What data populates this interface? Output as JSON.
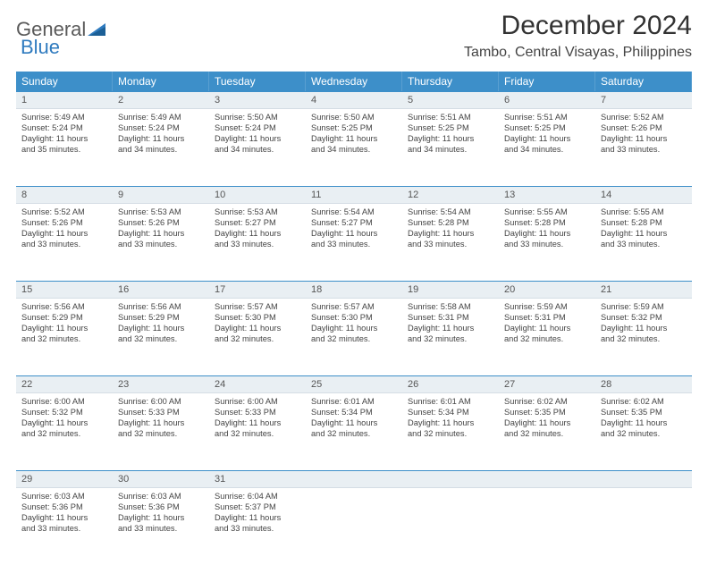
{
  "logo": {
    "word1": "General",
    "word2": "Blue"
  },
  "title": "December 2024",
  "location": "Tambo, Central Visayas, Philippines",
  "header_bg": "#3d8fc9",
  "daynum_bg": "#e9eff3",
  "day_names": [
    "Sunday",
    "Monday",
    "Tuesday",
    "Wednesday",
    "Thursday",
    "Friday",
    "Saturday"
  ],
  "weeks": [
    {
      "nums": [
        "1",
        "2",
        "3",
        "4",
        "5",
        "6",
        "7"
      ],
      "cells": [
        {
          "sunrise": "Sunrise: 5:49 AM",
          "sunset": "Sunset: 5:24 PM",
          "d1": "Daylight: 11 hours",
          "d2": "and 35 minutes."
        },
        {
          "sunrise": "Sunrise: 5:49 AM",
          "sunset": "Sunset: 5:24 PM",
          "d1": "Daylight: 11 hours",
          "d2": "and 34 minutes."
        },
        {
          "sunrise": "Sunrise: 5:50 AM",
          "sunset": "Sunset: 5:24 PM",
          "d1": "Daylight: 11 hours",
          "d2": "and 34 minutes."
        },
        {
          "sunrise": "Sunrise: 5:50 AM",
          "sunset": "Sunset: 5:25 PM",
          "d1": "Daylight: 11 hours",
          "d2": "and 34 minutes."
        },
        {
          "sunrise": "Sunrise: 5:51 AM",
          "sunset": "Sunset: 5:25 PM",
          "d1": "Daylight: 11 hours",
          "d2": "and 34 minutes."
        },
        {
          "sunrise": "Sunrise: 5:51 AM",
          "sunset": "Sunset: 5:25 PM",
          "d1": "Daylight: 11 hours",
          "d2": "and 34 minutes."
        },
        {
          "sunrise": "Sunrise: 5:52 AM",
          "sunset": "Sunset: 5:26 PM",
          "d1": "Daylight: 11 hours",
          "d2": "and 33 minutes."
        }
      ]
    },
    {
      "nums": [
        "8",
        "9",
        "10",
        "11",
        "12",
        "13",
        "14"
      ],
      "cells": [
        {
          "sunrise": "Sunrise: 5:52 AM",
          "sunset": "Sunset: 5:26 PM",
          "d1": "Daylight: 11 hours",
          "d2": "and 33 minutes."
        },
        {
          "sunrise": "Sunrise: 5:53 AM",
          "sunset": "Sunset: 5:26 PM",
          "d1": "Daylight: 11 hours",
          "d2": "and 33 minutes."
        },
        {
          "sunrise": "Sunrise: 5:53 AM",
          "sunset": "Sunset: 5:27 PM",
          "d1": "Daylight: 11 hours",
          "d2": "and 33 minutes."
        },
        {
          "sunrise": "Sunrise: 5:54 AM",
          "sunset": "Sunset: 5:27 PM",
          "d1": "Daylight: 11 hours",
          "d2": "and 33 minutes."
        },
        {
          "sunrise": "Sunrise: 5:54 AM",
          "sunset": "Sunset: 5:28 PM",
          "d1": "Daylight: 11 hours",
          "d2": "and 33 minutes."
        },
        {
          "sunrise": "Sunrise: 5:55 AM",
          "sunset": "Sunset: 5:28 PM",
          "d1": "Daylight: 11 hours",
          "d2": "and 33 minutes."
        },
        {
          "sunrise": "Sunrise: 5:55 AM",
          "sunset": "Sunset: 5:28 PM",
          "d1": "Daylight: 11 hours",
          "d2": "and 33 minutes."
        }
      ]
    },
    {
      "nums": [
        "15",
        "16",
        "17",
        "18",
        "19",
        "20",
        "21"
      ],
      "cells": [
        {
          "sunrise": "Sunrise: 5:56 AM",
          "sunset": "Sunset: 5:29 PM",
          "d1": "Daylight: 11 hours",
          "d2": "and 32 minutes."
        },
        {
          "sunrise": "Sunrise: 5:56 AM",
          "sunset": "Sunset: 5:29 PM",
          "d1": "Daylight: 11 hours",
          "d2": "and 32 minutes."
        },
        {
          "sunrise": "Sunrise: 5:57 AM",
          "sunset": "Sunset: 5:30 PM",
          "d1": "Daylight: 11 hours",
          "d2": "and 32 minutes."
        },
        {
          "sunrise": "Sunrise: 5:57 AM",
          "sunset": "Sunset: 5:30 PM",
          "d1": "Daylight: 11 hours",
          "d2": "and 32 minutes."
        },
        {
          "sunrise": "Sunrise: 5:58 AM",
          "sunset": "Sunset: 5:31 PM",
          "d1": "Daylight: 11 hours",
          "d2": "and 32 minutes."
        },
        {
          "sunrise": "Sunrise: 5:59 AM",
          "sunset": "Sunset: 5:31 PM",
          "d1": "Daylight: 11 hours",
          "d2": "and 32 minutes."
        },
        {
          "sunrise": "Sunrise: 5:59 AM",
          "sunset": "Sunset: 5:32 PM",
          "d1": "Daylight: 11 hours",
          "d2": "and 32 minutes."
        }
      ]
    },
    {
      "nums": [
        "22",
        "23",
        "24",
        "25",
        "26",
        "27",
        "28"
      ],
      "cells": [
        {
          "sunrise": "Sunrise: 6:00 AM",
          "sunset": "Sunset: 5:32 PM",
          "d1": "Daylight: 11 hours",
          "d2": "and 32 minutes."
        },
        {
          "sunrise": "Sunrise: 6:00 AM",
          "sunset": "Sunset: 5:33 PM",
          "d1": "Daylight: 11 hours",
          "d2": "and 32 minutes."
        },
        {
          "sunrise": "Sunrise: 6:00 AM",
          "sunset": "Sunset: 5:33 PM",
          "d1": "Daylight: 11 hours",
          "d2": "and 32 minutes."
        },
        {
          "sunrise": "Sunrise: 6:01 AM",
          "sunset": "Sunset: 5:34 PM",
          "d1": "Daylight: 11 hours",
          "d2": "and 32 minutes."
        },
        {
          "sunrise": "Sunrise: 6:01 AM",
          "sunset": "Sunset: 5:34 PM",
          "d1": "Daylight: 11 hours",
          "d2": "and 32 minutes."
        },
        {
          "sunrise": "Sunrise: 6:02 AM",
          "sunset": "Sunset: 5:35 PM",
          "d1": "Daylight: 11 hours",
          "d2": "and 32 minutes."
        },
        {
          "sunrise": "Sunrise: 6:02 AM",
          "sunset": "Sunset: 5:35 PM",
          "d1": "Daylight: 11 hours",
          "d2": "and 32 minutes."
        }
      ]
    },
    {
      "nums": [
        "29",
        "30",
        "31",
        "",
        "",
        "",
        ""
      ],
      "cells": [
        {
          "sunrise": "Sunrise: 6:03 AM",
          "sunset": "Sunset: 5:36 PM",
          "d1": "Daylight: 11 hours",
          "d2": "and 33 minutes."
        },
        {
          "sunrise": "Sunrise: 6:03 AM",
          "sunset": "Sunset: 5:36 PM",
          "d1": "Daylight: 11 hours",
          "d2": "and 33 minutes."
        },
        {
          "sunrise": "Sunrise: 6:04 AM",
          "sunset": "Sunset: 5:37 PM",
          "d1": "Daylight: 11 hours",
          "d2": "and 33 minutes."
        },
        {
          "sunrise": "",
          "sunset": "",
          "d1": "",
          "d2": ""
        },
        {
          "sunrise": "",
          "sunset": "",
          "d1": "",
          "d2": ""
        },
        {
          "sunrise": "",
          "sunset": "",
          "d1": "",
          "d2": ""
        },
        {
          "sunrise": "",
          "sunset": "",
          "d1": "",
          "d2": ""
        }
      ]
    }
  ]
}
